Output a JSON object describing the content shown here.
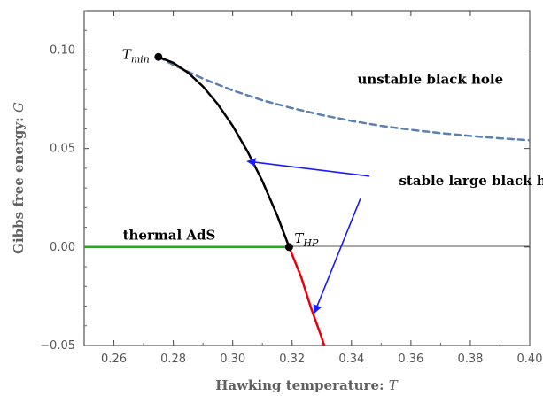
{
  "chart_data": {
    "type": "line",
    "xlabel": "Hawking temperature: ",
    "xlabel_var": "T",
    "ylabel": "Gibbs free energy: ",
    "ylabel_var": "G",
    "xlim": [
      0.25,
      0.4
    ],
    "ylim": [
      -0.05,
      0.12
    ],
    "xticks": [
      0.26,
      0.28,
      0.3,
      0.32,
      0.34,
      0.36,
      0.38,
      0.4
    ],
    "yticks": [
      -0.05,
      0.0,
      0.05,
      0.1
    ],
    "xtick_labels": [
      "0.26",
      "0.28",
      "0.30",
      "0.32",
      "0.34",
      "0.36",
      "0.38",
      "0.40"
    ],
    "ytick_labels": [
      "−0.05",
      "0.00",
      "0.05",
      "0.10"
    ],
    "zero_line": true,
    "series": [
      {
        "key": "unstable",
        "color": "#5b7fae",
        "style": "dashed",
        "points": [
          [
            0.275,
            0.0965
          ],
          [
            0.28,
            0.0925
          ],
          [
            0.29,
            0.0855
          ],
          [
            0.3,
            0.0795
          ],
          [
            0.31,
            0.0745
          ],
          [
            0.32,
            0.0705
          ],
          [
            0.33,
            0.067
          ],
          [
            0.34,
            0.064
          ],
          [
            0.35,
            0.0615
          ],
          [
            0.36,
            0.0595
          ],
          [
            0.37,
            0.0578
          ],
          [
            0.38,
            0.0564
          ],
          [
            0.39,
            0.0552
          ],
          [
            0.4,
            0.0542
          ]
        ]
      },
      {
        "key": "stable-large",
        "color": "#000000",
        "style": "solid",
        "points": [
          [
            0.275,
            0.0965
          ],
          [
            0.28,
            0.0935
          ],
          [
            0.285,
            0.0885
          ],
          [
            0.29,
            0.0815
          ],
          [
            0.295,
            0.0725
          ],
          [
            0.3,
            0.0615
          ],
          [
            0.305,
            0.0485
          ],
          [
            0.31,
            0.0335
          ],
          [
            0.315,
            0.016
          ],
          [
            0.319,
            0.0
          ]
        ]
      },
      {
        "key": "large-below-hp",
        "color": "#e8000b",
        "style": "solid",
        "points": [
          [
            0.319,
            0.0
          ],
          [
            0.323,
            -0.015
          ],
          [
            0.3265,
            -0.0315
          ],
          [
            0.3295,
            -0.044
          ],
          [
            0.3325,
            -0.0575
          ]
        ]
      },
      {
        "key": "thermal-ads",
        "color": "#22aa22",
        "style": "solid",
        "points": [
          [
            0.25,
            0.0
          ],
          [
            0.319,
            0.0
          ]
        ]
      }
    ],
    "markers": [
      {
        "key": "tmin",
        "x": 0.275,
        "y": 0.0965,
        "label": "T",
        "sub": "min"
      },
      {
        "key": "thp",
        "x": 0.319,
        "y": 0.0,
        "label": "T",
        "sub": "HP"
      }
    ],
    "annotations": [
      {
        "key": "unstable-label",
        "text": "unstable black hole",
        "x": 0.342,
        "y": 0.083
      },
      {
        "key": "stable-label",
        "text": "stable large black hole",
        "x": 0.356,
        "y": 0.0315
      },
      {
        "key": "ads-label",
        "text": "thermal AdS",
        "x": 0.263,
        "y": 0.0038
      }
    ],
    "arrows": [
      {
        "key": "arrow-stable",
        "color": "#1a1aff",
        "from": [
          0.346,
          0.036
        ],
        "to": [
          0.305,
          0.0435
        ]
      },
      {
        "key": "arrow-red",
        "color": "#1a1aff",
        "from": [
          0.343,
          0.0245
        ],
        "to": [
          0.3275,
          -0.0335
        ]
      }
    ]
  }
}
